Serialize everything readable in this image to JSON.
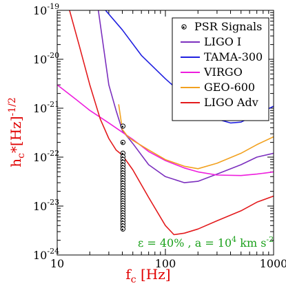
{
  "chart_data": {
    "type": "line",
    "xscale": "log",
    "yscale": "log",
    "xlim": [
      10,
      1000
    ],
    "ylim": [
      1e-24,
      1e-19
    ],
    "x_ticks": [
      {
        "value": 10,
        "label": "10"
      },
      {
        "value": 100,
        "label": "100"
      },
      {
        "value": 1000,
        "label": "1000"
      }
    ],
    "y_ticks": [
      {
        "value": 1e-19,
        "base": "10",
        "exp": "-19"
      },
      {
        "value": 1e-20,
        "base": "10",
        "exp": "-20"
      },
      {
        "value": 1e-21,
        "base": "10",
        "exp": "-21"
      },
      {
        "value": 1e-22,
        "base": "10",
        "exp": "-22"
      },
      {
        "value": 1e-23,
        "base": "10",
        "exp": "-23"
      },
      {
        "value": 1e-24,
        "base": "10",
        "exp": "-24"
      }
    ],
    "xlabel": {
      "main": "f",
      "sub": "c",
      "rest": " [Hz]"
    },
    "ylabel": {
      "main": "h",
      "sub": "c",
      "rest": "*[Hz]",
      "sup": "-1/2"
    },
    "legend_position": "top-right",
    "grid": false,
    "series": [
      {
        "name": "LIGO I",
        "color": "#7b2fbe",
        "points": [
          [
            24,
            1e-19
          ],
          [
            30,
            3e-21
          ],
          [
            35,
            9e-22
          ],
          [
            40,
            3.5e-22
          ],
          [
            50,
            1.9e-22
          ],
          [
            70,
            7e-23
          ],
          [
            100,
            4e-23
          ],
          [
            150,
            3e-23
          ],
          [
            200,
            3.2e-23
          ],
          [
            300,
            4.5e-23
          ],
          [
            500,
            7e-23
          ],
          [
            700,
            1e-22
          ],
          [
            1000,
            1.2e-22
          ]
        ]
      },
      {
        "name": "TAMA-300",
        "color": "#1f1fe0",
        "points": [
          [
            27,
            1.1e-19
          ],
          [
            40,
            4e-20
          ],
          [
            60,
            1.2e-20
          ],
          [
            100,
            4e-21
          ],
          [
            150,
            1.8e-21
          ],
          [
            200,
            1.2e-21
          ],
          [
            300,
            6e-22
          ],
          [
            400,
            5e-22
          ],
          [
            500,
            5.2e-22
          ],
          [
            700,
            7.5e-22
          ],
          [
            1000,
            1.1e-21
          ]
        ]
      },
      {
        "name": "VIRGO",
        "color": "#ee1cdd",
        "points": [
          [
            10,
            3e-21
          ],
          [
            15,
            1.5e-21
          ],
          [
            20,
            9e-22
          ],
          [
            30,
            5e-22
          ],
          [
            50,
            2.3e-22
          ],
          [
            70,
            1.3e-22
          ],
          [
            100,
            8.5e-23
          ],
          [
            150,
            6e-23
          ],
          [
            200,
            5e-23
          ],
          [
            300,
            4.3e-23
          ],
          [
            500,
            4.2e-23
          ],
          [
            700,
            4.5e-23
          ],
          [
            1000,
            5e-23
          ]
        ]
      },
      {
        "name": "GEO-600",
        "color": "#f2a11f",
        "points": [
          [
            37,
            1.2e-21
          ],
          [
            40,
            3.7e-22
          ],
          [
            45,
            2.6e-22
          ],
          [
            50,
            2.2e-22
          ],
          [
            70,
            1.4e-22
          ],
          [
            100,
            8.9e-23
          ],
          [
            150,
            6.5e-23
          ],
          [
            200,
            5.8e-23
          ],
          [
            300,
            7.5e-23
          ],
          [
            500,
            1.2e-22
          ],
          [
            700,
            1.8e-22
          ],
          [
            1000,
            2.6e-22
          ]
        ]
      },
      {
        "name": "LIGO Adv",
        "color": "#e31a1c",
        "points": [
          [
            13,
            1e-19
          ],
          [
            16,
            1.9e-20
          ],
          [
            20,
            3e-21
          ],
          [
            25,
            6e-22
          ],
          [
            30,
            2.4e-22
          ],
          [
            35,
            1.4e-22
          ],
          [
            40,
            1.1e-22
          ],
          [
            50,
            5.5e-23
          ],
          [
            70,
            1.5e-23
          ],
          [
            100,
            4e-24
          ],
          [
            120,
            2.6e-24
          ],
          [
            150,
            2.8e-24
          ],
          [
            200,
            3.4e-24
          ],
          [
            300,
            5e-24
          ],
          [
            500,
            8e-24
          ],
          [
            700,
            1.2e-23
          ],
          [
            1000,
            1.6e-23
          ]
        ]
      }
    ],
    "scatter": {
      "name": "PSR Signals",
      "points": [
        [
          40.5,
          4.3e-22
        ],
        [
          40.5,
          2e-22
        ],
        [
          40.5,
          1.2e-22
        ],
        [
          40.5,
          1.02e-22
        ],
        [
          40.5,
          8.9e-23
        ],
        [
          40.5,
          7.8e-23
        ],
        [
          40.5,
          6.8e-23
        ],
        [
          40.5,
          6e-23
        ],
        [
          40.5,
          5.3e-23
        ],
        [
          40.5,
          4.7e-23
        ],
        [
          40.5,
          4.2e-23
        ],
        [
          40.5,
          3.7e-23
        ],
        [
          40.5,
          3.3e-23
        ],
        [
          40.5,
          2.9e-23
        ],
        [
          40.5,
          2.6e-23
        ],
        [
          40.5,
          2.3e-23
        ],
        [
          40.5,
          2.05e-23
        ],
        [
          40.5,
          1.8e-23
        ],
        [
          40.5,
          1.6e-23
        ],
        [
          40.5,
          1.43e-23
        ],
        [
          40.5,
          1.28e-23
        ],
        [
          40.5,
          1.14e-23
        ],
        [
          40.5,
          1.02e-23
        ],
        [
          40.5,
          9.1e-24
        ],
        [
          40.5,
          8.1e-24
        ],
        [
          40.5,
          7.2e-24
        ],
        [
          40.5,
          6.4e-24
        ],
        [
          40.5,
          5.7e-24
        ],
        [
          40.5,
          5e-24
        ],
        [
          40.5,
          4.4e-24
        ],
        [
          40.5,
          3.9e-24
        ],
        [
          40.5,
          3.4e-24
        ]
      ]
    },
    "annotation": {
      "eps": "ε = 40% , a = 10",
      "exp": "4",
      "unit": " km s",
      "unit_exp": "-2"
    }
  },
  "colors": {
    "axis_title": "#e00000",
    "annotation": "#1aa01a"
  }
}
